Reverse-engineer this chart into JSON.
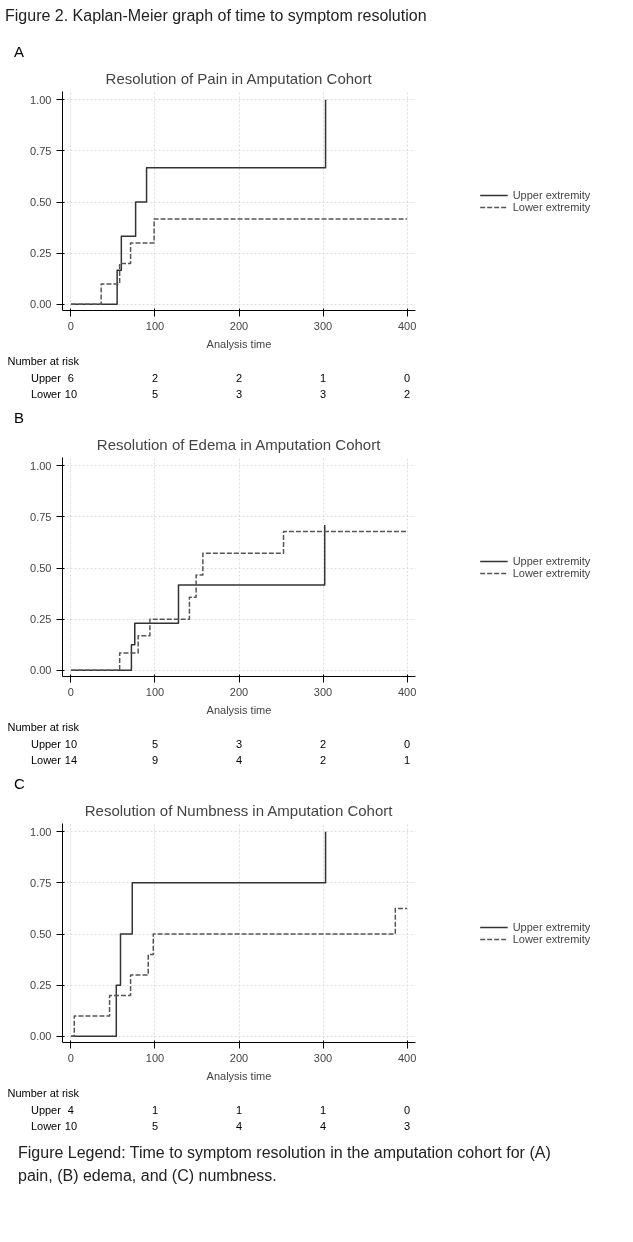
{
  "chart_data": [
    {
      "type": "step",
      "title": "Resolution of Pain in Amputation Cohort",
      "xlabel": "Analysis time",
      "xlim": [
        -10,
        410
      ],
      "ylim": [
        -0.03,
        1.04
      ],
      "xticks": [
        0,
        100,
        200,
        300,
        400
      ],
      "yticks": [
        {
          "value": 0,
          "label": "0.00"
        },
        {
          "value": 0.25,
          "label": "0.25"
        },
        {
          "value": 0.5,
          "label": "0.50"
        },
        {
          "value": 0.75,
          "label": "0.75"
        },
        {
          "value": 1,
          "label": "1.00"
        }
      ],
      "grid": true,
      "legend": "right",
      "series": [
        {
          "name": "Upper extremity",
          "color": "#333333",
          "line_style": "solid",
          "x": [
            0,
            55,
            60,
            77,
            90,
            303
          ],
          "values": [
            0,
            0.167,
            0.333,
            0.5,
            0.667,
            1.0
          ]
        },
        {
          "name": "Lower extremity",
          "color": "#555555",
          "line_style": "dashed",
          "x": [
            0,
            36,
            58,
            71,
            99,
            400
          ],
          "values": [
            0,
            0.1,
            0.2,
            0.3,
            0.417,
            0.417
          ]
        }
      ],
      "annotations": [
        "Figure 2. Kaplan-Meier graph of time to symptom resolution",
        "A",
        "Number at risk",
        "Upper",
        "6",
        "2",
        "2",
        "1",
        "0",
        "Lower",
        "10",
        "5",
        "3",
        "3",
        "2"
      ]
    },
    {
      "type": "step",
      "title": "Resolution of Edema in Amputation Cohort",
      "xlabel": "Analysis time",
      "xlim": [
        -10,
        410
      ],
      "ylim": [
        -0.03,
        1.04
      ],
      "xticks": [
        0,
        100,
        200,
        300,
        400
      ],
      "yticks": [
        {
          "value": 0,
          "label": "0.00"
        },
        {
          "value": 0.25,
          "label": "0.25"
        },
        {
          "value": 0.5,
          "label": "0.50"
        },
        {
          "value": 0.75,
          "label": "0.75"
        },
        {
          "value": 1,
          "label": "1.00"
        }
      ],
      "grid": true,
      "legend": "right",
      "series": [
        {
          "name": "Upper extremity",
          "color": "#333333",
          "line_style": "solid",
          "x": [
            0,
            72,
            76,
            128,
            302
          ],
          "values": [
            0,
            0.125,
            0.23,
            0.417,
            0.71
          ]
        },
        {
          "name": "Lower extremity",
          "color": "#555555",
          "line_style": "dashed",
          "x": [
            0,
            58,
            80,
            94,
            141,
            149,
            157,
            253,
            400
          ],
          "values": [
            0,
            0.085,
            0.169,
            0.25,
            0.357,
            0.466,
            0.572,
            0.679,
            0.679
          ]
        }
      ],
      "annotations": [
        "B",
        "Number at risk",
        "Upper",
        "10",
        "5",
        "3",
        "2",
        "0",
        "Lower",
        "14",
        "9",
        "4",
        "2",
        "1"
      ]
    },
    {
      "type": "step",
      "title": "Resolution of Numbness in Amputation Cohort",
      "xlabel": "Analysis time",
      "xlim": [
        -10,
        410
      ],
      "ylim": [
        -0.03,
        1.04
      ],
      "xticks": [
        0,
        100,
        200,
        300,
        400
      ],
      "yticks": [
        {
          "value": 0,
          "label": "0.00"
        },
        {
          "value": 0.25,
          "label": "0.25"
        },
        {
          "value": 0.5,
          "label": "0.50"
        },
        {
          "value": 0.75,
          "label": "0.75"
        },
        {
          "value": 1,
          "label": "1.00"
        }
      ],
      "grid": true,
      "legend": "right",
      "series": [
        {
          "name": "Upper extremity",
          "color": "#333333",
          "line_style": "solid",
          "x": [
            0,
            54,
            59,
            73,
            303
          ],
          "values": [
            0,
            0.25,
            0.5,
            0.75,
            1.0
          ]
        },
        {
          "name": "Lower extremity",
          "color": "#555555",
          "line_style": "dashed",
          "x": [
            0,
            4,
            46,
            71,
            92,
            98,
            386,
            400
          ],
          "values": [
            0,
            0.1,
            0.2,
            0.3,
            0.4,
            0.5,
            0.625,
            0.625
          ]
        }
      ],
      "annotations": [
        "C",
        "Number at risk",
        "Upper",
        "4",
        "1",
        "1",
        "1",
        "0",
        "Lower",
        "10",
        "5",
        "4",
        "4",
        "3",
        "Figure Legend: Time to symptom resolution in the amputation cohort for (A) pain, (B) edema, and (C) numbness."
      ]
    }
  ]
}
